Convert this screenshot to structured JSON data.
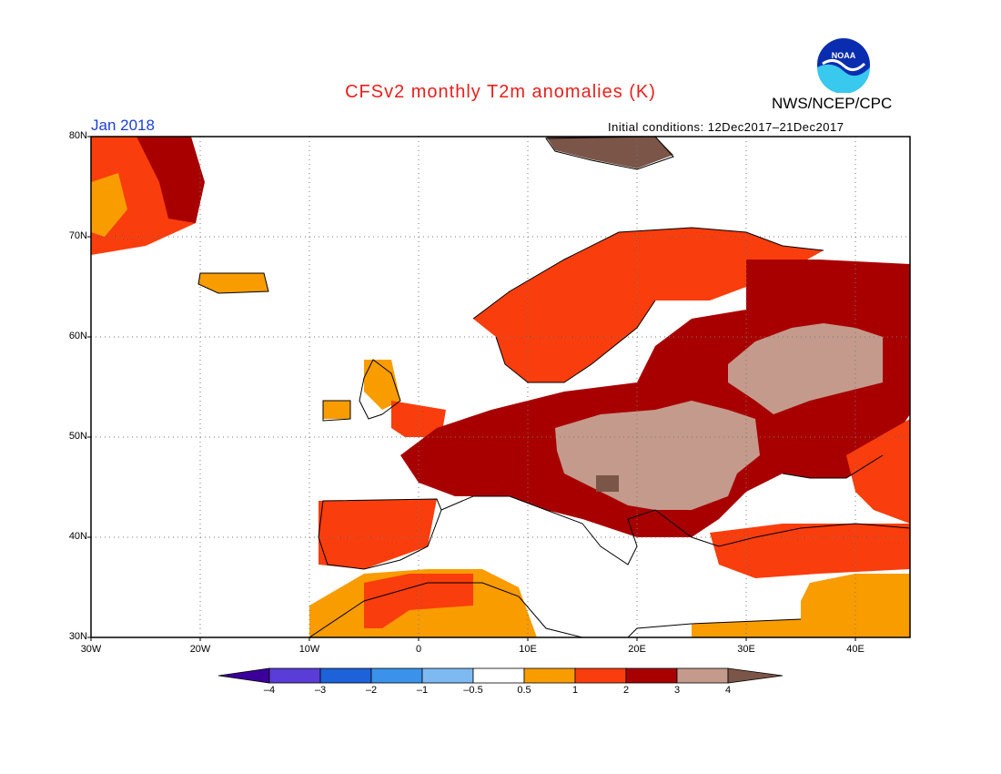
{
  "header": {
    "title": "CFSv2 monthly T2m anomalies (K)",
    "org": "NWS/NCEP/CPC",
    "logo_text": "NOAA",
    "month": "Jan 2018",
    "initial_conditions": "Initial conditions: 12Dec2017–21Dec2017"
  },
  "axes": {
    "lat_labels": [
      "80N",
      "70N",
      "60N",
      "50N",
      "40N",
      "30N"
    ],
    "lon_labels": [
      "30W",
      "20W",
      "10W",
      "0",
      "10E",
      "20E",
      "30E",
      "40E"
    ]
  },
  "colorbar": {
    "labels": [
      "–4",
      "–3",
      "–2",
      "–1",
      "–0.5",
      "0.5",
      "1",
      "2",
      "3",
      "4"
    ],
    "colors": {
      "lt_neg4": "#3a0099",
      "neg4_neg3": "#5a3dd6",
      "neg3_neg2": "#1d62d8",
      "neg2_neg1": "#3b92ea",
      "neg1_neg05": "#7dbaf2",
      "neg05_05": "#ffffff",
      "p05_1": "#f99c00",
      "p1_2": "#fa3d0c",
      "p2_3": "#a80000",
      "p3_4": "#c49a8c",
      "gt_4": "#7a5548"
    }
  }
}
